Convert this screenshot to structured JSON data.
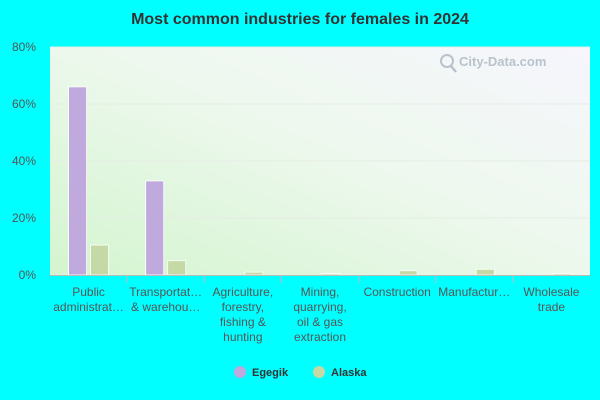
{
  "chart_data": {
    "type": "bar",
    "title": "Most common industries for females in 2024",
    "categories": [
      [
        "Public",
        "administrat…"
      ],
      [
        "Transportat…",
        "& warehou…"
      ],
      [
        "Agriculture,",
        "forestry,",
        "fishing &",
        "hunting"
      ],
      [
        "Mining,",
        "quarrying,",
        "oil & gas",
        "extraction"
      ],
      [
        "Construction"
      ],
      [
        "Manufactur…"
      ],
      [
        "Wholesale",
        "trade"
      ]
    ],
    "series": [
      {
        "name": "Egegik",
        "color": "#c0a9dd",
        "values": [
          66,
          33,
          0,
          0,
          0,
          0,
          0
        ]
      },
      {
        "name": "Alaska",
        "color": "#c4d9a5",
        "values": [
          10.5,
          5,
          1,
          0.5,
          1.5,
          2,
          0.5
        ]
      }
    ],
    "ylim": [
      0,
      80
    ],
    "yticks": [
      0,
      20,
      40,
      60,
      80
    ],
    "ytick_labels": [
      "0%",
      "20%",
      "40%",
      "60%",
      "80%"
    ],
    "grid": true,
    "legend_position": "bottom-center"
  },
  "watermark": {
    "text": "City-Data.com",
    "icon": "search-icon"
  }
}
